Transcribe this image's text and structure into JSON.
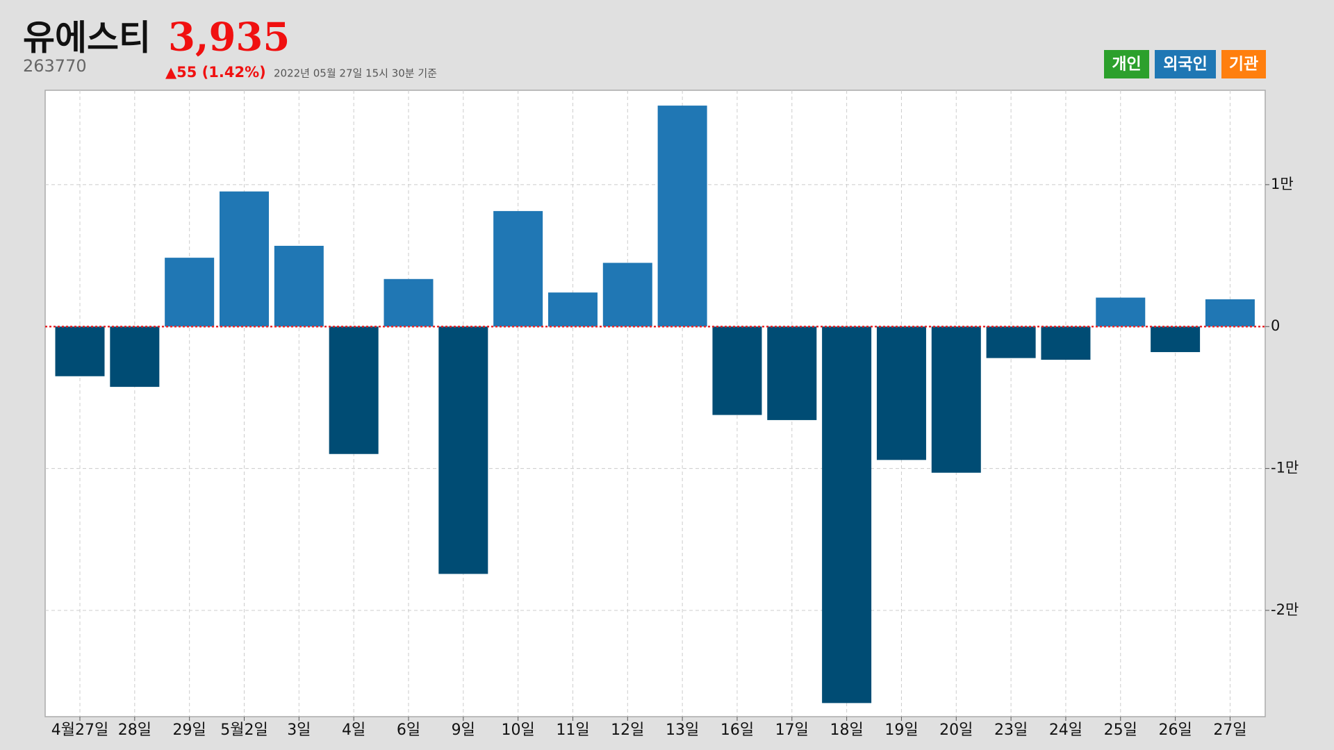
{
  "chart_data": {
    "type": "bar",
    "title": "유에스티",
    "price": "3,935",
    "code": "263770",
    "change": "▲55 (1.42%)",
    "timestamp": "2022년 05월 27일 15시 30분 기준",
    "toggles": [
      {
        "label": "개인",
        "color": "#2ca02c"
      },
      {
        "label": "외국인",
        "color": "#1f77b4"
      },
      {
        "label": "기관",
        "color": "#ff7f0e"
      }
    ],
    "categories": [
      "4월27일",
      "28일",
      "29일",
      "5월2일",
      "3일",
      "4일",
      "6일",
      "9일",
      "10일",
      "11일",
      "12일",
      "13일",
      "16일",
      "17일",
      "18일",
      "19일",
      "20일",
      "23일",
      "24일",
      "25일",
      "26일",
      "27일"
    ],
    "values": [
      -3500,
      -4250,
      4850,
      9520,
      5690,
      -8980,
      3350,
      -17430,
      8140,
      2400,
      4490,
      15570,
      -6230,
      -6590,
      -26530,
      -9400,
      -10300,
      -2220,
      -2340,
      2040,
      -1800,
      1920
    ],
    "color_positive": "#2077b4",
    "color_negative": "#004c74",
    "zero_line_color": "#e8262a",
    "ylim": [
      -27490,
      16650
    ],
    "yticks": [
      {
        "value": -20000,
        "label": "-2만"
      },
      {
        "value": -10000,
        "label": "-1만"
      },
      0,
      {
        "value": 10000,
        "label": "1만"
      }
    ],
    "grid": true
  }
}
